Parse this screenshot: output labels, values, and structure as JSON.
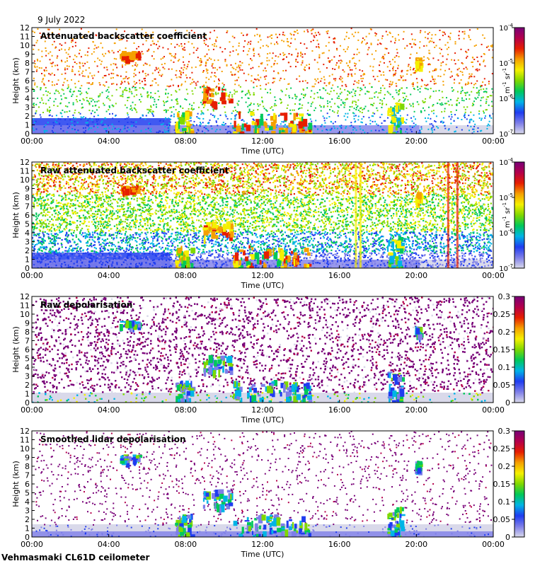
{
  "header": {
    "date": "9 July 2022"
  },
  "footer": {
    "label": "Vehmasmaki CL61D ceilometer"
  },
  "chart_data": [
    {
      "type": "heatmap",
      "title": "Attenuated backscatter coefficient",
      "xlabel": "Time (UTC)",
      "ylabel": "Height (km)",
      "xticks": [
        "00:00",
        "04:00",
        "08:00",
        "12:00",
        "16:00",
        "20:00",
        "00:00"
      ],
      "yticks": [
        "0",
        "1",
        "2",
        "3",
        "4",
        "5",
        "6",
        "7",
        "8",
        "9",
        "10",
        "11",
        "12"
      ],
      "ylim": [
        0,
        12
      ],
      "colorbar": {
        "scale": "log",
        "ticks_base": "10",
        "ticks_exp": [
          "-7",
          "-6",
          "-5",
          "-4"
        ],
        "unit_base": "m",
        "unit_exp1": "-1",
        "unit_mid": " sr",
        "unit_exp2": "-1"
      },
      "style": "sparse"
    },
    {
      "type": "heatmap",
      "title": "Raw attenuated backscatter coefficient",
      "xlabel": "Time (UTC)",
      "ylabel": "Height (km)",
      "xticks": [
        "00:00",
        "04:00",
        "08:00",
        "12:00",
        "16:00",
        "20:00",
        "00:00"
      ],
      "yticks": [
        "0",
        "1",
        "2",
        "3",
        "4",
        "5",
        "6",
        "7",
        "8",
        "9",
        "10",
        "11",
        "12"
      ],
      "ylim": [
        0,
        12
      ],
      "colorbar": {
        "scale": "log",
        "ticks_base": "10",
        "ticks_exp": [
          "-7",
          "-6",
          "-5",
          "-4"
        ],
        "unit_base": "m",
        "unit_exp1": "-1",
        "unit_mid": " sr",
        "unit_exp2": "-1"
      },
      "style": "dense"
    },
    {
      "type": "heatmap",
      "title": "Raw depolarisation",
      "xlabel": "Time (UTC)",
      "ylabel": "Height (km)",
      "xticks": [
        "00:00",
        "04:00",
        "08:00",
        "12:00",
        "16:00",
        "20:00",
        "00:00"
      ],
      "yticks": [
        "0",
        "1",
        "2",
        "3",
        "4",
        "5",
        "6",
        "7",
        "8",
        "9",
        "10",
        "11",
        "12"
      ],
      "ylim": [
        0,
        12
      ],
      "colorbar": {
        "scale": "linear",
        "ticks": [
          "0",
          "0.05",
          "0.1",
          "0.15",
          "0.2",
          "0.25",
          "0.3"
        ]
      },
      "style": "noise"
    },
    {
      "type": "heatmap",
      "title": "Smoothed lidar depolarisation",
      "xlabel": "Time (UTC)",
      "ylabel": "Height (km)",
      "xticks": [
        "00:00",
        "04:00",
        "08:00",
        "12:00",
        "16:00",
        "20:00",
        "00:00"
      ],
      "yticks": [
        "0",
        "1",
        "2",
        "3",
        "4",
        "5",
        "6",
        "7",
        "8",
        "9",
        "10",
        "11",
        "12"
      ],
      "ylim": [
        0,
        12
      ],
      "colorbar": {
        "scale": "linear",
        "ticks": [
          "0",
          "0.05",
          "0.1",
          "0.15",
          "0.2",
          "0.25",
          "0.3"
        ]
      },
      "style": "smooth"
    }
  ],
  "colors": {
    "colormap": [
      "#d9d9ea",
      "#7e7ee8",
      "#1f3cf0",
      "#00b4e6",
      "#00c85a",
      "#7fd800",
      "#f5f000",
      "#f5a000",
      "#e61e00",
      "#b4004b",
      "#780078"
    ]
  }
}
